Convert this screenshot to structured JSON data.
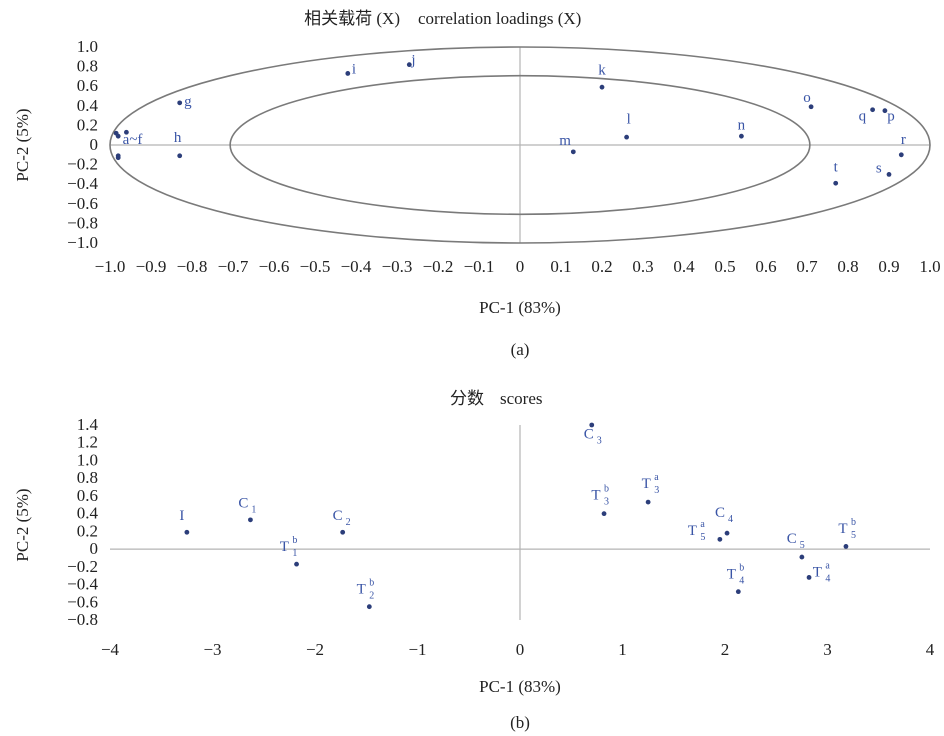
{
  "chart_data": [
    {
      "type": "scatter",
      "panel_label": "(a)",
      "title_cn": "相关载荷 (X)",
      "title_en": "correlation loadings (X)",
      "xlabel": "PC-1 (83%)",
      "ylabel": "PC-2 (5%)",
      "xlim": [
        -1.0,
        1.0
      ],
      "ylim": [
        -1.0,
        1.0
      ],
      "xticks": [
        "−1.0",
        "−0.9",
        "−0.8",
        "−0.7",
        "−0.6",
        "−0.5",
        "−0.4",
        "−0.3",
        "−0.2",
        "−0.1",
        "0",
        "0.1",
        "0.2",
        "0.3",
        "0.4",
        "0.5",
        "0.6",
        "0.7",
        "0.8",
        "0.9",
        "1.0"
      ],
      "yticks": [
        "1.0",
        "0.8",
        "0.6",
        "0.4",
        "0.2",
        "0",
        "−0.2",
        "−0.4",
        "−0.6",
        "−0.8",
        "−1.0"
      ],
      "circles": [
        {
          "r": 1.0
        },
        {
          "r": 0.707
        }
      ],
      "colors": {
        "points": "#2c3e7a",
        "labels": "#3a55a6",
        "ellipse": "#7a7a7a",
        "zero_lines": "#b4b4b4"
      },
      "points": [
        {
          "x": -0.985,
          "y": 0.12
        },
        {
          "x": -0.98,
          "y": 0.09
        },
        {
          "x": -0.96,
          "y": 0.13
        },
        {
          "x": -0.98,
          "y": -0.11
        },
        {
          "x": -0.98,
          "y": -0.13
        },
        {
          "x": -0.83,
          "y": 0.43
        },
        {
          "x": -0.83,
          "y": -0.11
        },
        {
          "x": -0.42,
          "y": 0.73
        },
        {
          "x": -0.27,
          "y": 0.82
        },
        {
          "x": 0.2,
          "y": 0.59
        },
        {
          "x": 0.26,
          "y": 0.08
        },
        {
          "x": 0.13,
          "y": -0.07
        },
        {
          "x": 0.54,
          "y": 0.09
        },
        {
          "x": 0.71,
          "y": 0.39
        },
        {
          "x": 0.86,
          "y": 0.36
        },
        {
          "x": 0.89,
          "y": 0.35
        },
        {
          "x": 0.93,
          "y": -0.1
        },
        {
          "x": 0.9,
          "y": -0.3
        },
        {
          "x": 0.77,
          "y": -0.39
        }
      ],
      "labels": [
        {
          "text": "a~f",
          "x": -0.945,
          "y": 0.01
        },
        {
          "text": "g",
          "x": -0.81,
          "y": 0.4
        },
        {
          "text": "h",
          "x": -0.835,
          "y": 0.03
        },
        {
          "text": "i",
          "x": -0.405,
          "y": 0.73
        },
        {
          "text": "j",
          "x": -0.26,
          "y": 0.82
        },
        {
          "text": "k",
          "x": 0.2,
          "y": 0.72
        },
        {
          "text": "l",
          "x": 0.265,
          "y": 0.22
        },
        {
          "text": "m",
          "x": 0.11,
          "y": 0.0
        },
        {
          "text": "n",
          "x": 0.54,
          "y": 0.16
        },
        {
          "text": "o",
          "x": 0.7,
          "y": 0.44
        },
        {
          "text": "q",
          "x": 0.835,
          "y": 0.25
        },
        {
          "text": "p",
          "x": 0.905,
          "y": 0.25
        },
        {
          "text": "r",
          "x": 0.935,
          "y": 0.01
        },
        {
          "text": "s",
          "x": 0.875,
          "y": -0.28
        },
        {
          "text": "t",
          "x": 0.77,
          "y": -0.27
        }
      ]
    },
    {
      "type": "scatter",
      "panel_label": "(b)",
      "title_cn": "分数",
      "title_en": "scores",
      "xlabel": "PC-1 (83%)",
      "ylabel": "PC-2 (5%)",
      "xlim": [
        -4,
        4
      ],
      "ylim": [
        -0.8,
        1.4
      ],
      "xticks": [
        "−4",
        "−3",
        "−2",
        "−1",
        "0",
        "1",
        "2",
        "3",
        "4"
      ],
      "yticks": [
        "1.4",
        "1.2",
        "1.0",
        "0.8",
        "0.6",
        "0.4",
        "0.2",
        "0",
        "−0.2",
        "−0.4",
        "−0.6",
        "−0.8"
      ],
      "colors": {
        "points": "#2c3e7a",
        "labels": "#3a55a6",
        "zero_lines": "#b4b4b4"
      },
      "points": [
        {
          "x": -3.25,
          "y": 0.19
        },
        {
          "x": -2.63,
          "y": 0.33
        },
        {
          "x": -1.73,
          "y": 0.19
        },
        {
          "x": -2.18,
          "y": -0.17
        },
        {
          "x": -1.47,
          "y": -0.65
        },
        {
          "x": 0.7,
          "y": 1.4
        },
        {
          "x": 0.82,
          "y": 0.4
        },
        {
          "x": 1.25,
          "y": 0.53
        },
        {
          "x": 1.95,
          "y": 0.11
        },
        {
          "x": 2.02,
          "y": 0.18
        },
        {
          "x": 2.13,
          "y": -0.48
        },
        {
          "x": 2.75,
          "y": -0.09
        },
        {
          "x": 2.82,
          "y": -0.32
        },
        {
          "x": 3.18,
          "y": 0.03
        }
      ],
      "labels": [
        {
          "base": "I",
          "sup": "",
          "sub": "",
          "x": -3.25,
          "y": 0.33
        },
        {
          "base": "C",
          "sup": "",
          "sub": "1",
          "x": -2.65,
          "y": 0.47
        },
        {
          "base": "C",
          "sup": "",
          "sub": "2",
          "x": -1.73,
          "y": 0.33
        },
        {
          "base": "T",
          "sup": "b",
          "sub": "1",
          "x": -2.25,
          "y": -0.02
        },
        {
          "base": "T",
          "sup": "b",
          "sub": "2",
          "x": -1.5,
          "y": -0.5
        },
        {
          "base": "C",
          "sup": "",
          "sub": "3",
          "x": 0.72,
          "y": 1.25
        },
        {
          "base": "T",
          "sup": "b",
          "sub": "3",
          "x": 0.79,
          "y": 0.56
        },
        {
          "base": "T",
          "sup": "a",
          "sub": "3",
          "x": 1.28,
          "y": 0.69
        },
        {
          "base": "T",
          "sup": "a",
          "sub": "5",
          "x": 1.73,
          "y": 0.16
        },
        {
          "base": "C",
          "sup": "",
          "sub": "4",
          "x": 2.0,
          "y": 0.36
        },
        {
          "base": "T",
          "sup": "b",
          "sub": "4",
          "x": 2.11,
          "y": -0.33
        },
        {
          "base": "C",
          "sup": "",
          "sub": "5",
          "x": 2.7,
          "y": 0.07
        },
        {
          "base": "T",
          "sup": "a",
          "sub": "4",
          "x": 2.95,
          "y": -0.31
        },
        {
          "base": "T",
          "sup": "b",
          "sub": "5",
          "x": 3.2,
          "y": 0.18
        }
      ]
    }
  ]
}
